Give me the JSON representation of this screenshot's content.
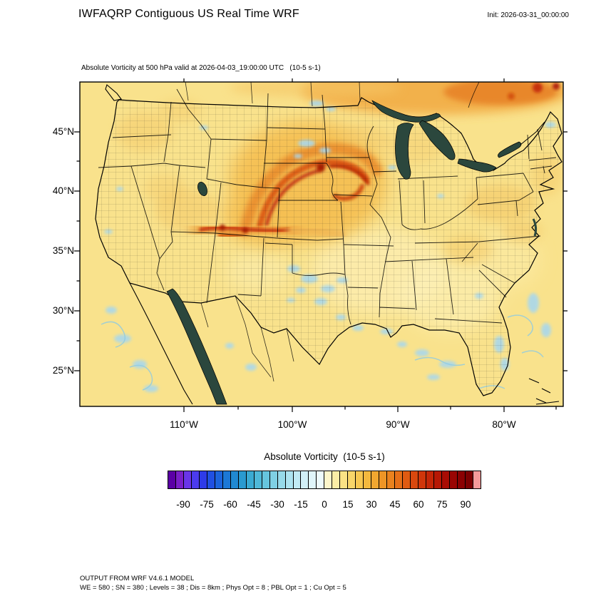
{
  "window": {
    "title": "IWFAQRP Contiguous US Real Time WRF",
    "init_label": "Init: 2026-03-31_00:00:00"
  },
  "plot": {
    "subtitle": "Absolute Vorticity at 500 hPa valid at 2026-04-03_19:00:00 UTC   (10-5 s-1)",
    "y_tick_labels": [
      "45°N",
      "40°N",
      "35°N",
      "30°N",
      "25°N"
    ],
    "x_tick_labels": [
      "110°W",
      "100°W",
      "90°W",
      "80°W"
    ]
  },
  "colorbar": {
    "title": "Absolute Vorticity  (10-5 s-1)",
    "tick_labels": [
      "-90",
      "-75",
      "-60",
      "-45",
      "-30",
      "-15",
      "0",
      "15",
      "30",
      "45",
      "60",
      "75",
      "90"
    ],
    "min": -100,
    "max": 100,
    "step": 5,
    "colors": [
      "#5B00A5",
      "#7A1FC8",
      "#6A35E8",
      "#4B3BEE",
      "#2E3BE8",
      "#2050E2",
      "#1C64DC",
      "#1C78D6",
      "#2089D2",
      "#2A9AD0",
      "#3AAAD2",
      "#4FB8D8",
      "#66C5DE",
      "#7FD0E4",
      "#97DAEA",
      "#ADE3F0",
      "#C1EAF4",
      "#D2F0F7",
      "#E0F5FA",
      "#EDFAFC",
      "#FDF6CB",
      "#FBEDA6",
      "#FAE285",
      "#F8D569",
      "#F6C751",
      "#F3B83E",
      "#F1A730",
      "#EE9526",
      "#EA821E",
      "#E66F18",
      "#E05B12",
      "#D9480E",
      "#D0360A",
      "#C42607",
      "#B71805",
      "#A90D04",
      "#9A0503",
      "#8B0102",
      "#7C0001",
      "#F59B9B"
    ]
  },
  "footer": {
    "line1": "OUTPUT FROM WRF V4.6.1 MODEL",
    "line2": "WE = 580 ; SN = 380 ; Levels = 38 ; Dis = 8km ; Phys Opt = 8 ; PBL Opt = 1 ; Cu Opt = 5"
  },
  "map_colors": {
    "background": "#F9E28C",
    "inland_water": "#2B473D",
    "negative_vorticity_patch": "#A9D8EC",
    "high_vorticity_band": "#EA8F2E",
    "high_vorticity_core": "#C22E08",
    "boundaries": "#000000"
  },
  "chart_data": {
    "type": "heatmap",
    "title": "Absolute Vorticity at 500 hPa",
    "units": "10-5 s-1",
    "valid_time": "2026-04-03_19:00:00 UTC",
    "init_time": "2026-03-31_00:00:00",
    "region": "Contiguous US",
    "x_ticks_deg_west": [
      110,
      100,
      90,
      80
    ],
    "y_ticks_deg_north": [
      45,
      40,
      35,
      30,
      25
    ],
    "colorbar_range": [
      -100,
      100
    ],
    "colorbar_tick_values": [
      -90,
      -75,
      -60,
      -45,
      -30,
      -15,
      0,
      15,
      30,
      45,
      60,
      75,
      90
    ],
    "background_value_range": [
      0,
      15
    ],
    "notable_features": [
      {
        "region": "Wyoming / South Dakota / Nebraska",
        "description": "curved spiral band of high vorticity, ~45 to 90+"
      },
      {
        "region": "Colorado into Kansas",
        "description": "elongated east-west vorticity maximum, ~45 to 90"
      },
      {
        "region": "southern Canada along top of domain",
        "description": "broad band of enhanced vorticity, ~30 to 75"
      },
      {
        "region": "Texas / Oklahoma, Gulf coast, offshore",
        "description": "scattered small negative patches, ~-15 to -30"
      }
    ]
  }
}
